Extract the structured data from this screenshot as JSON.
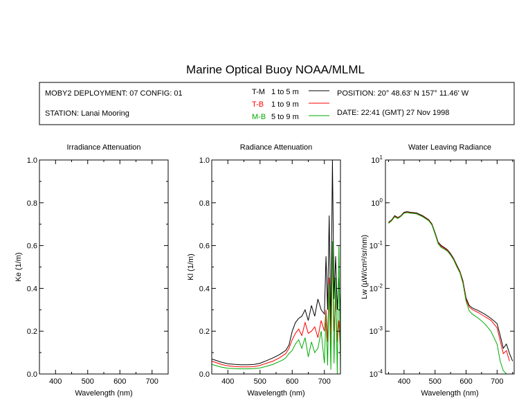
{
  "title": "Marine Optical Buoy NOAA/MLML",
  "info": {
    "deployment": "MOBY2 DEPLOYMENT: 07 CONFIG: 01",
    "station": "STATION: Lanai Mooring",
    "position": "POSITION: 20° 48.63' N   157° 11.46' W",
    "date": "DATE: 22:41 (GMT) 27 Nov 1998",
    "legend": [
      {
        "code": "T-M",
        "range": "1 to 5  m",
        "color": "#000000"
      },
      {
        "code": "T-B",
        "range": "1 to 9  m",
        "color": "#ff0000"
      },
      {
        "code": "M-B",
        "range": "5 to 9  m",
        "color": "#00aa00"
      }
    ]
  },
  "chart_data": [
    {
      "type": "line",
      "title": "Irradiance Attenuation",
      "xlabel": "Wavelength (nm)",
      "ylabel": "Ke  (1/m)",
      "xlim": [
        350,
        750
      ],
      "ylim": [
        0,
        1
      ],
      "xticks": [
        400,
        500,
        600,
        700
      ],
      "xtick_labels": [
        "400",
        "500",
        "600",
        "700"
      ],
      "yticks": [
        0,
        0.2,
        0.4,
        0.6,
        0.8,
        1.0
      ],
      "ytick_labels": [
        "0.0",
        "0.2",
        "0.4",
        "0.6",
        "0.8",
        "1.0"
      ],
      "series": []
    },
    {
      "type": "line",
      "title": "Radiance Attenuation",
      "xlabel": "Wavelength (nm)",
      "ylabel": "Kl  (1/m)",
      "xlim": [
        350,
        750
      ],
      "ylim": [
        0,
        1
      ],
      "xticks": [
        400,
        500,
        600,
        700
      ],
      "xtick_labels": [
        "400",
        "500",
        "600",
        "700"
      ],
      "yticks": [
        0,
        0.2,
        0.4,
        0.6,
        0.8,
        1.0
      ],
      "ytick_labels": [
        "0.0",
        "0.2",
        "0.4",
        "0.6",
        "0.8",
        "1.0"
      ],
      "series": [
        {
          "color": "#000000",
          "x": [
            350,
            360,
            380,
            400,
            420,
            440,
            460,
            480,
            500,
            520,
            540,
            560,
            570,
            580,
            590,
            600,
            610,
            620,
            630,
            640,
            650,
            660,
            670,
            680,
            690,
            700,
            705,
            710,
            715,
            720,
            725,
            730,
            735,
            740,
            745,
            750
          ],
          "y": [
            0.07,
            0.065,
            0.055,
            0.048,
            0.045,
            0.043,
            0.043,
            0.044,
            0.05,
            0.062,
            0.075,
            0.09,
            0.1,
            0.11,
            0.135,
            0.2,
            0.24,
            0.26,
            0.27,
            0.3,
            0.25,
            0.32,
            0.27,
            0.35,
            0.3,
            0.28,
            0.55,
            0.3,
            0.74,
            0.2,
            1.0,
            0.35,
            0.55,
            0.3,
            0.45,
            0.25
          ]
        },
        {
          "color": "#ff0000",
          "x": [
            350,
            360,
            380,
            400,
            420,
            440,
            460,
            480,
            500,
            520,
            540,
            560,
            570,
            580,
            590,
            600,
            610,
            620,
            630,
            640,
            650,
            660,
            670,
            680,
            690,
            700,
            705,
            710,
            715,
            720,
            725,
            730,
            735,
            740,
            745,
            750
          ],
          "y": [
            0.06,
            0.055,
            0.045,
            0.038,
            0.035,
            0.033,
            0.033,
            0.034,
            0.04,
            0.05,
            0.06,
            0.075,
            0.085,
            0.095,
            0.12,
            0.16,
            0.19,
            0.21,
            0.18,
            0.24,
            0.19,
            0.2,
            0.22,
            0.17,
            0.25,
            0.2,
            0.3,
            0.15,
            0.45,
            0.12,
            0.6,
            0.2,
            0.35,
            0.15,
            0.25,
            0.1
          ]
        },
        {
          "color": "#00aa00",
          "x": [
            350,
            360,
            380,
            400,
            420,
            440,
            460,
            480,
            500,
            520,
            540,
            560,
            570,
            580,
            590,
            600,
            610,
            620,
            630,
            640,
            650,
            660,
            670,
            680,
            690,
            700,
            705,
            710,
            715,
            720,
            725,
            730,
            735,
            740,
            745,
            750
          ],
          "y": [
            0.045,
            0.04,
            0.032,
            0.027,
            0.025,
            0.024,
            0.024,
            0.025,
            0.028,
            0.036,
            0.045,
            0.058,
            0.065,
            0.075,
            0.095,
            0.11,
            0.14,
            0.16,
            0.12,
            0.17,
            0.08,
            0.15,
            0.1,
            0.12,
            0.2,
            0.05,
            0.28,
            0.04,
            0.42,
            0.02,
            0.62,
            0.05,
            0.45,
            0.0,
            0.6,
            0.0
          ]
        }
      ]
    },
    {
      "type": "line",
      "title": "Water Leaving Radiance",
      "xlabel": "Wavelength (nm)",
      "ylabel": "Lw  (µW/cm²/sr/nm)",
      "yscale": "log",
      "xlim": [
        340,
        755
      ],
      "ylim": [
        0.0001,
        10
      ],
      "xticks": [
        400,
        500,
        600,
        700
      ],
      "xtick_labels": [
        "400",
        "500",
        "600",
        "700"
      ],
      "yticks": [
        0.0001,
        0.001,
        0.01,
        0.1,
        1,
        10
      ],
      "ytick_labels": [
        [
          "10",
          "-4"
        ],
        [
          "10",
          "-3"
        ],
        [
          "10",
          "-2"
        ],
        [
          "10",
          "-1"
        ],
        [
          "10",
          "0"
        ],
        [
          "10",
          "1"
        ]
      ],
      "series": [
        {
          "color": "#000000",
          "x": [
            350,
            360,
            370,
            380,
            390,
            400,
            410,
            420,
            440,
            460,
            480,
            490,
            500,
            510,
            520,
            530,
            540,
            550,
            560,
            570,
            580,
            590,
            600,
            610,
            620,
            640,
            660,
            680,
            700,
            710,
            720,
            730,
            740,
            750
          ],
          "y": [
            0.35,
            0.4,
            0.5,
            0.45,
            0.5,
            0.6,
            0.62,
            0.6,
            0.58,
            0.5,
            0.4,
            0.32,
            0.2,
            0.12,
            0.1,
            0.09,
            0.08,
            0.065,
            0.05,
            0.035,
            0.025,
            0.015,
            0.006,
            0.004,
            0.0035,
            0.003,
            0.0025,
            0.002,
            0.0015,
            0.0008,
            0.0004,
            0.0005,
            0.0003,
            0.0002
          ]
        },
        {
          "color": "#ff0000",
          "x": [
            350,
            360,
            370,
            380,
            390,
            400,
            410,
            420,
            440,
            460,
            480,
            490,
            500,
            510,
            520,
            530,
            540,
            550,
            560,
            570,
            580,
            590,
            600,
            610,
            620,
            640,
            660,
            680,
            700,
            710,
            720,
            730,
            740
          ],
          "y": [
            0.34,
            0.39,
            0.48,
            0.44,
            0.49,
            0.58,
            0.6,
            0.58,
            0.56,
            0.48,
            0.39,
            0.31,
            0.19,
            0.115,
            0.095,
            0.086,
            0.077,
            0.062,
            0.048,
            0.033,
            0.024,
            0.014,
            0.0055,
            0.0037,
            0.0032,
            0.0027,
            0.0022,
            0.0018,
            0.0012,
            0.0006,
            0.0003,
            0.00035,
            0.0002
          ]
        },
        {
          "color": "#00aa00",
          "x": [
            350,
            360,
            370,
            380,
            390,
            400,
            410,
            420,
            440,
            460,
            480,
            490,
            500,
            510,
            520,
            530,
            540,
            550,
            560,
            570,
            580,
            590,
            600,
            610,
            620,
            640,
            660,
            680,
            700,
            710,
            720,
            730
          ],
          "y": [
            0.33,
            0.38,
            0.47,
            0.43,
            0.48,
            0.57,
            0.59,
            0.57,
            0.55,
            0.47,
            0.38,
            0.3,
            0.185,
            0.11,
            0.09,
            0.082,
            0.074,
            0.06,
            0.046,
            0.032,
            0.023,
            0.013,
            0.005,
            0.003,
            0.0025,
            0.002,
            0.0015,
            0.001,
            0.0005,
            0.0002,
            0.00012,
            0.0001
          ]
        }
      ]
    }
  ]
}
